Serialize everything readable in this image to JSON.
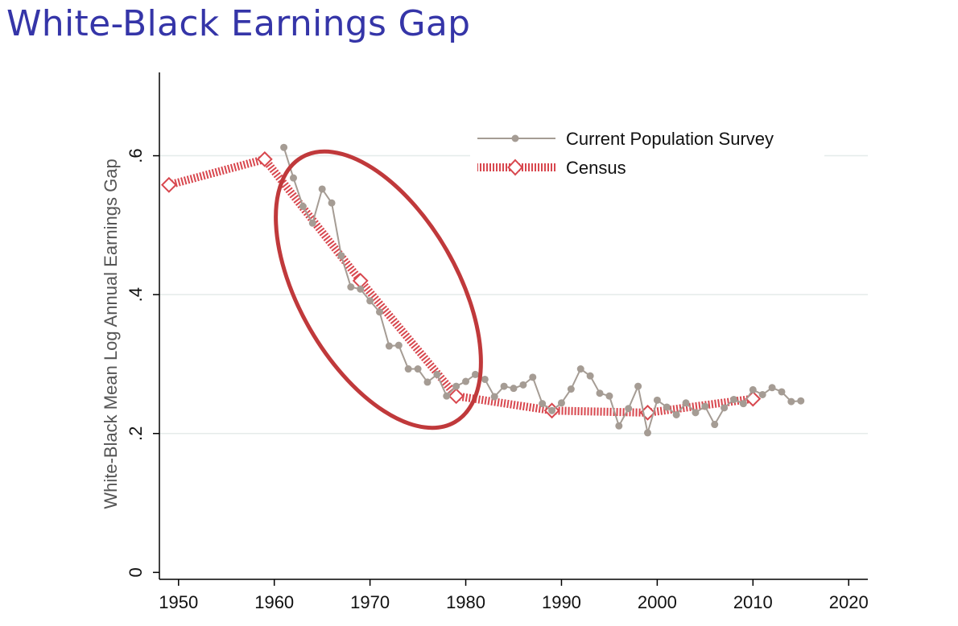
{
  "slide": {
    "title": "White-Black Earnings Gap"
  },
  "colors": {
    "title": "#3535a8",
    "cps": "#a59c94",
    "census": "#d8474e",
    "ellipse": "#c0393b",
    "grid": "#e5ebea"
  },
  "chart_data": {
    "type": "line",
    "title": "",
    "xlabel": "",
    "ylabel": "White-Black Mean Log Annual Earnings Gap",
    "xlim": [
      1948,
      2022
    ],
    "ylim": [
      -0.01,
      0.72
    ],
    "xticks": [
      1950,
      1960,
      1970,
      1980,
      1990,
      2000,
      2010,
      2020
    ],
    "xtick_labels": [
      "1950",
      "1960",
      "1970",
      "1980",
      "1990",
      "2000",
      "2010",
      "2020"
    ],
    "yticks": [
      0,
      0.2,
      0.4,
      0.6
    ],
    "ytick_labels": [
      "0",
      ".2",
      ".4",
      ".6"
    ],
    "grid": true,
    "legend": {
      "placement": "top-right",
      "entries": [
        "Current Population Survey",
        "Census"
      ]
    },
    "annotation": {
      "type": "ellipse",
      "description": "circled decline 1961-1979"
    },
    "series": [
      {
        "name": "Current Population Survey",
        "marker": "circle",
        "x": [
          1961,
          1962,
          1963,
          1964,
          1965,
          1966,
          1967,
          1968,
          1969,
          1970,
          1971,
          1972,
          1973,
          1974,
          1975,
          1976,
          1977,
          1978,
          1979,
          1980,
          1981,
          1982,
          1983,
          1984,
          1985,
          1986,
          1987,
          1988,
          1989,
          1990,
          1991,
          1992,
          1993,
          1994,
          1995,
          1996,
          1997,
          1998,
          1999,
          2000,
          2001,
          2002,
          2003,
          2004,
          2005,
          2006,
          2007,
          2008,
          2009,
          2010,
          2011,
          2012,
          2013,
          2014,
          2015
        ],
        "y": [
          0.612,
          0.568,
          0.527,
          0.503,
          0.552,
          0.532,
          0.456,
          0.411,
          0.408,
          0.391,
          0.375,
          0.326,
          0.327,
          0.293,
          0.293,
          0.274,
          0.285,
          0.254,
          0.268,
          0.275,
          0.285,
          0.278,
          0.253,
          0.268,
          0.265,
          0.27,
          0.281,
          0.243,
          0.233,
          0.244,
          0.264,
          0.293,
          0.283,
          0.258,
          0.254,
          0.211,
          0.236,
          0.268,
          0.201,
          0.248,
          0.238,
          0.227,
          0.244,
          0.23,
          0.239,
          0.213,
          0.237,
          0.249,
          0.243,
          0.263,
          0.256,
          0.266,
          0.26,
          0.246,
          0.247
        ]
      },
      {
        "name": "Census",
        "marker": "diamond",
        "x": [
          1949,
          1959,
          1969,
          1979,
          1989,
          1999,
          2010
        ],
        "y": [
          0.558,
          0.595,
          0.42,
          0.254,
          0.233,
          0.23,
          0.25
        ]
      }
    ]
  }
}
